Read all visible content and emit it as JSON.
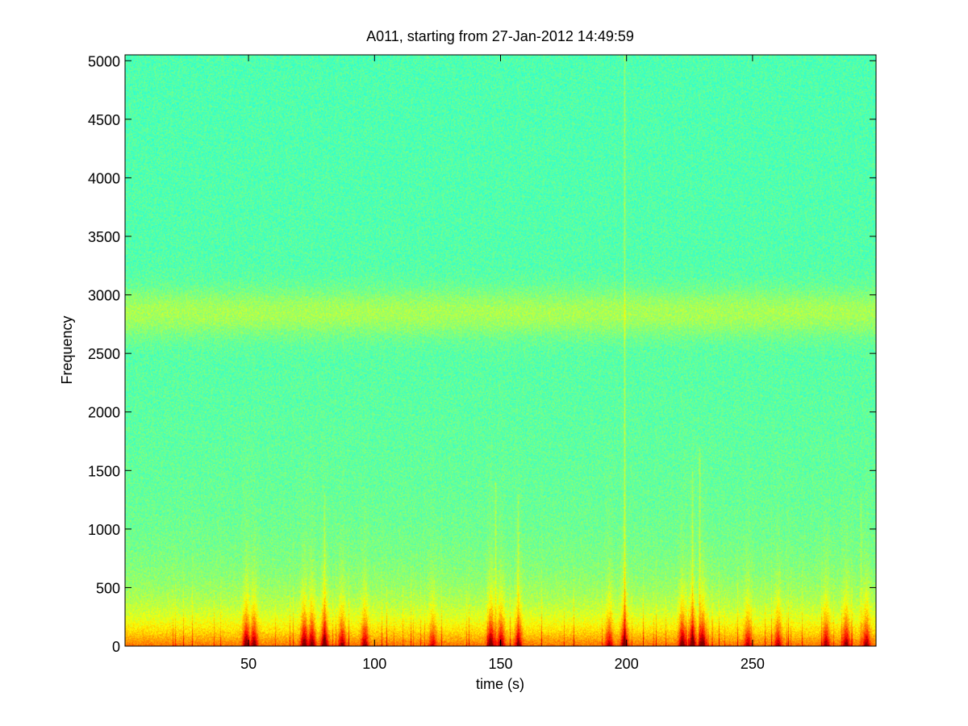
{
  "chart_data": {
    "type": "heatmap",
    "subtype": "spectrogram",
    "title": "A011, starting from 27-Jan-2012 14:49:59",
    "xlabel": "time (s)",
    "ylabel": "Frequency",
    "xlim": [
      1,
      299
    ],
    "ylim": [
      0,
      5050
    ],
    "xticks": [
      50,
      100,
      150,
      200,
      250
    ],
    "yticks": [
      0,
      500,
      1000,
      1500,
      2000,
      2500,
      3000,
      3500,
      4000,
      4500,
      5000
    ],
    "colormap": "jet",
    "grid": false,
    "background_band": {
      "note": "energy concentrated at low frequencies, broadband band near 2800",
      "band_center": 2850,
      "band_halfwidth": 200
    },
    "tonal_lines": [
      {
        "time": 199,
        "fmax": 5050,
        "strength": 1.0
      },
      {
        "time": 148,
        "fmax": 1400,
        "strength": 0.7
      },
      {
        "time": 229,
        "fmax": 1700,
        "strength": 0.7
      },
      {
        "time": 226,
        "fmax": 1500,
        "strength": 0.6
      },
      {
        "time": 80,
        "fmax": 1300,
        "strength": 0.5
      },
      {
        "time": 157,
        "fmax": 1300,
        "strength": 0.5
      },
      {
        "time": 293,
        "fmax": 1300,
        "strength": 0.5
      }
    ],
    "low_freq_bursts": [
      {
        "time": 49,
        "strength": 0.9
      },
      {
        "time": 52,
        "strength": 0.8
      },
      {
        "time": 72,
        "strength": 0.9
      },
      {
        "time": 75,
        "strength": 0.85
      },
      {
        "time": 80,
        "strength": 0.9
      },
      {
        "time": 87,
        "strength": 0.7
      },
      {
        "time": 96,
        "strength": 0.7
      },
      {
        "time": 123,
        "strength": 0.5
      },
      {
        "time": 146,
        "strength": 0.95
      },
      {
        "time": 150,
        "strength": 0.8
      },
      {
        "time": 157,
        "strength": 0.7
      },
      {
        "time": 193,
        "strength": 0.6
      },
      {
        "time": 199,
        "strength": 0.8
      },
      {
        "time": 222,
        "strength": 0.9
      },
      {
        "time": 226,
        "strength": 0.95
      },
      {
        "time": 230,
        "strength": 0.9
      },
      {
        "time": 248,
        "strength": 0.6
      },
      {
        "time": 260,
        "strength": 0.6
      },
      {
        "time": 279,
        "strength": 0.7
      },
      {
        "time": 287,
        "strength": 0.75
      },
      {
        "time": 295,
        "strength": 0.7
      }
    ]
  }
}
